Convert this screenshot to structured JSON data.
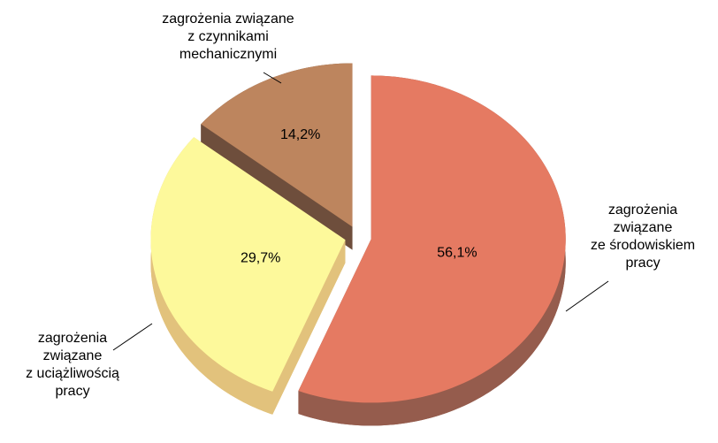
{
  "chart_data": {
    "type": "pie",
    "categories": [
      [
        "zagrożenia",
        "związane",
        "ze środowiskiem",
        "pracy"
      ],
      [
        "zagrożenia",
        "związane",
        "z uciążliwością",
        "pracy"
      ],
      [
        "zagrożenia związane",
        "z czynnikami",
        "mechanicznymi"
      ]
    ],
    "values": [
      56.1,
      29.7,
      14.2
    ],
    "value_labels": [
      "56,1%",
      "29,7%",
      "14,2%"
    ],
    "colors": [
      "#e57a62",
      "#fdf99b",
      "#bd855e"
    ],
    "side_colors": [
      "#955c4d",
      "#e2c27c",
      "#6e4e3c"
    ]
  }
}
